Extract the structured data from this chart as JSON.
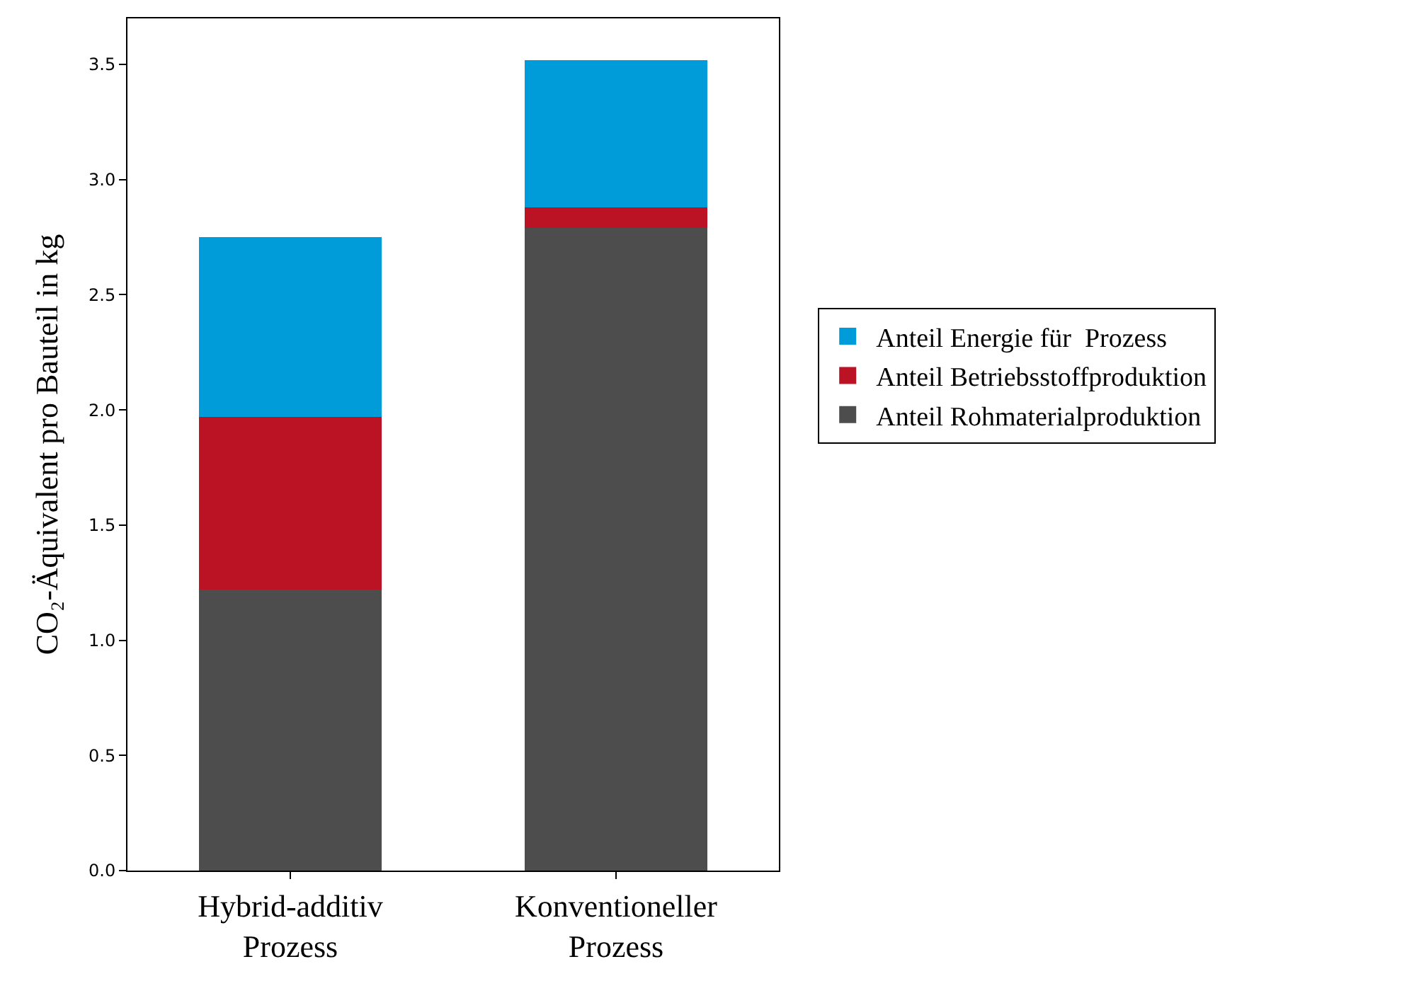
{
  "chart_data": {
    "type": "bar",
    "stacked": true,
    "ylabel": "CO₂-Äquivalent pro Bauteil in kg",
    "categories": [
      "Hybrid-additiv\nProzess",
      "Konventioneller\nProzess"
    ],
    "series": [
      {
        "name": "Anteil Rohmaterialproduktion",
        "color": "#4d4d4d",
        "values": [
          1.22,
          2.79
        ]
      },
      {
        "name": "Anteil Betriebsstoffproduktion",
        "color": "#bb1224",
        "values": [
          0.75,
          0.09
        ]
      },
      {
        "name": "Anteil Energie für  Prozess",
        "color": "#009cd9",
        "values": [
          0.78,
          0.64
        ]
      }
    ],
    "ylim": [
      0,
      3.7
    ],
    "yticks": [
      {
        "value": 0,
        "label": "0.0"
      },
      0.5,
      {
        "value": 1,
        "label": "1.0"
      },
      1.5,
      {
        "value": 2,
        "label": "2.0"
      },
      2.5,
      {
        "value": 3,
        "label": "3.0"
      },
      3.5
    ],
    "legend": "right"
  }
}
